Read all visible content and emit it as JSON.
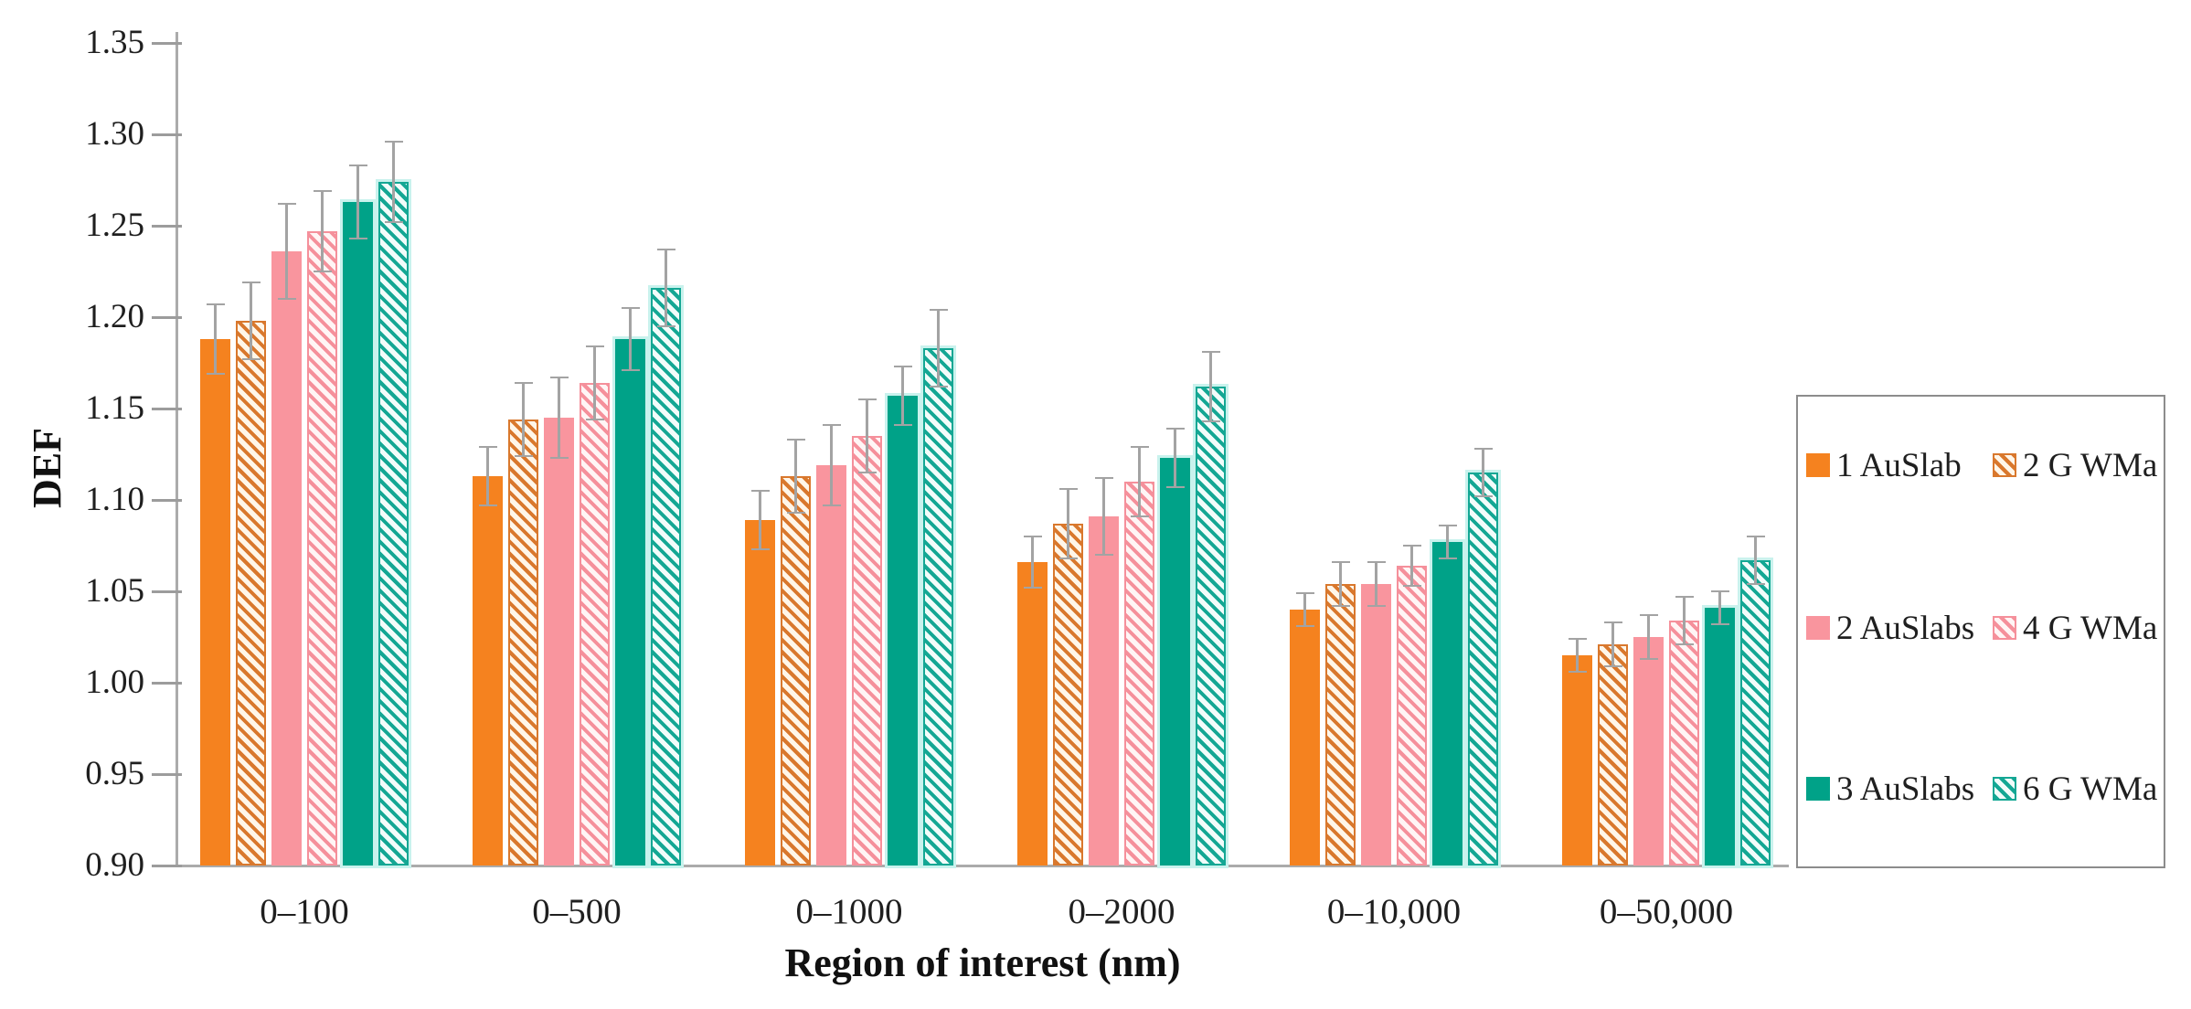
{
  "chart_data": {
    "type": "bar",
    "title": "",
    "xlabel": "Region of interest (nm)",
    "ylabel": "DEF",
    "ylim": [
      0.9,
      1.35
    ],
    "ytick_step": 0.05,
    "grid": false,
    "legend_position": "right",
    "legend_columns": 2,
    "error_bars": true,
    "error_bar_color": "#a3a3a3",
    "categories": [
      "0–100",
      "0–500",
      "0–1000",
      "0–2000",
      "0–10,000",
      "0–50,000"
    ],
    "series": [
      {
        "name": "1 AuSlab",
        "style": "solid",
        "color": "#F5821F",
        "hatch_bg": null,
        "edge": null,
        "values": [
          1.188,
          1.113,
          1.089,
          1.066,
          1.04,
          1.015
        ],
        "errors": [
          0.019,
          0.016,
          0.016,
          0.014,
          0.009,
          0.009
        ]
      },
      {
        "name": "2 G WMa",
        "style": "hatched",
        "color": "#D9782D",
        "hatch_bg": "#FFF6E9",
        "edge": null,
        "values": [
          1.198,
          1.144,
          1.113,
          1.087,
          1.054,
          1.021
        ],
        "errors": [
          0.021,
          0.02,
          0.02,
          0.019,
          0.012,
          0.012
        ]
      },
      {
        "name": "2 AuSlabs",
        "style": "solid",
        "color": "#F9959E",
        "hatch_bg": null,
        "edge": null,
        "values": [
          1.236,
          1.145,
          1.119,
          1.091,
          1.054,
          1.025
        ],
        "errors": [
          0.026,
          0.022,
          0.022,
          0.021,
          0.012,
          0.012
        ]
      },
      {
        "name": "4 G WMa",
        "style": "hatched",
        "color": "#F5909B",
        "hatch_bg": "#FFF5F5",
        "edge": null,
        "values": [
          1.247,
          1.164,
          1.135,
          1.11,
          1.064,
          1.034
        ],
        "errors": [
          0.022,
          0.02,
          0.02,
          0.019,
          0.011,
          0.013
        ]
      },
      {
        "name": "3 AuSlabs",
        "style": "solid",
        "color": "#00A288",
        "hatch_bg": null,
        "edge": "#C9F2ED",
        "values": [
          1.263,
          1.188,
          1.157,
          1.123,
          1.077,
          1.041
        ],
        "errors": [
          0.02,
          0.017,
          0.016,
          0.016,
          0.009,
          0.009
        ]
      },
      {
        "name": "6 G WMa",
        "style": "hatched",
        "color": "#14A794",
        "hatch_bg": "#F2FCFA",
        "edge": "#C9F2ED",
        "values": [
          1.274,
          1.216,
          1.183,
          1.162,
          1.115,
          1.067
        ],
        "errors": [
          0.022,
          0.021,
          0.021,
          0.019,
          0.013,
          0.013
        ]
      }
    ]
  }
}
